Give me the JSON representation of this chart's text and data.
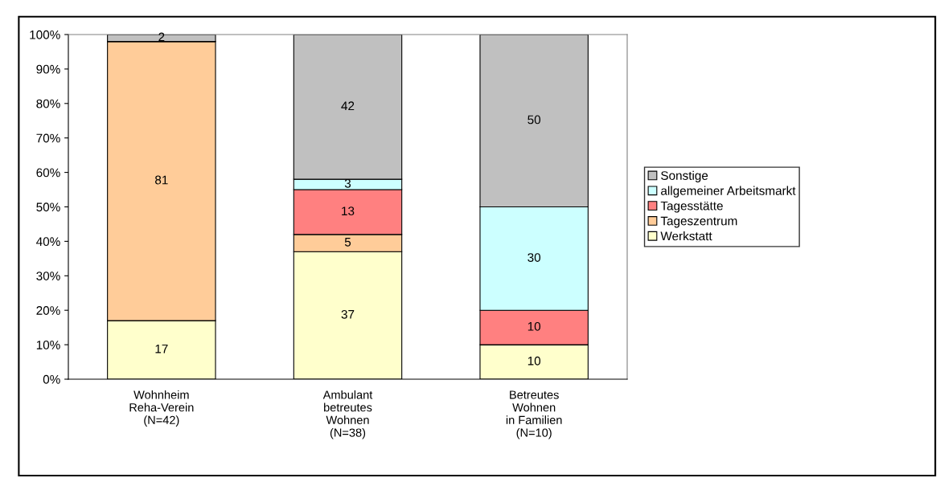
{
  "chart_data": {
    "type": "bar",
    "stacked": true,
    "categories": [
      "Wohnheim\nReha-Verein\n(N=42)",
      "Ambulant\nbetreutes\nWohnen\n(N=38)",
      "Betreutes\nWohnen\nin Familien\n(N=10)"
    ],
    "series": [
      {
        "name": "Werkstatt",
        "color": "#ffffcc",
        "values": [
          17,
          37,
          10
        ],
        "value_labels": [
          "17",
          "37",
          "10"
        ]
      },
      {
        "name": "Tageszentrum",
        "color": "#ffcc99",
        "values": [
          81,
          5,
          0
        ],
        "value_labels": [
          "81",
          "5",
          null
        ]
      },
      {
        "name": "Tagesstätte",
        "color": "#ff8080",
        "values": [
          0,
          13,
          10
        ],
        "value_labels": [
          null,
          "13",
          "10"
        ]
      },
      {
        "name": "allgemeiner Arbeitsmarkt",
        "color": "#ccffff",
        "values": [
          0,
          3,
          30
        ],
        "value_labels": [
          null,
          "3",
          "30"
        ]
      },
      {
        "name": "Sonstige",
        "color": "#c0c0c0",
        "values": [
          2,
          42,
          50
        ],
        "value_labels": [
          "2",
          "42",
          "50"
        ]
      }
    ],
    "ylim": [
      0,
      100
    ],
    "yticks": [
      {
        "value": 0,
        "label": "0%"
      },
      {
        "value": 10,
        "label": "10%"
      },
      {
        "value": 20,
        "label": "20%"
      },
      {
        "value": 30,
        "label": "30%"
      },
      {
        "value": 40,
        "label": "40%"
      },
      {
        "value": 50,
        "label": "50%"
      },
      {
        "value": 60,
        "label": "60%"
      },
      {
        "value": 70,
        "label": "70%"
      },
      {
        "value": 80,
        "label": "80%"
      },
      {
        "value": 90,
        "label": "90%"
      },
      {
        "value": 100,
        "label": "100%"
      }
    ],
    "grid": false,
    "legend": "right"
  }
}
